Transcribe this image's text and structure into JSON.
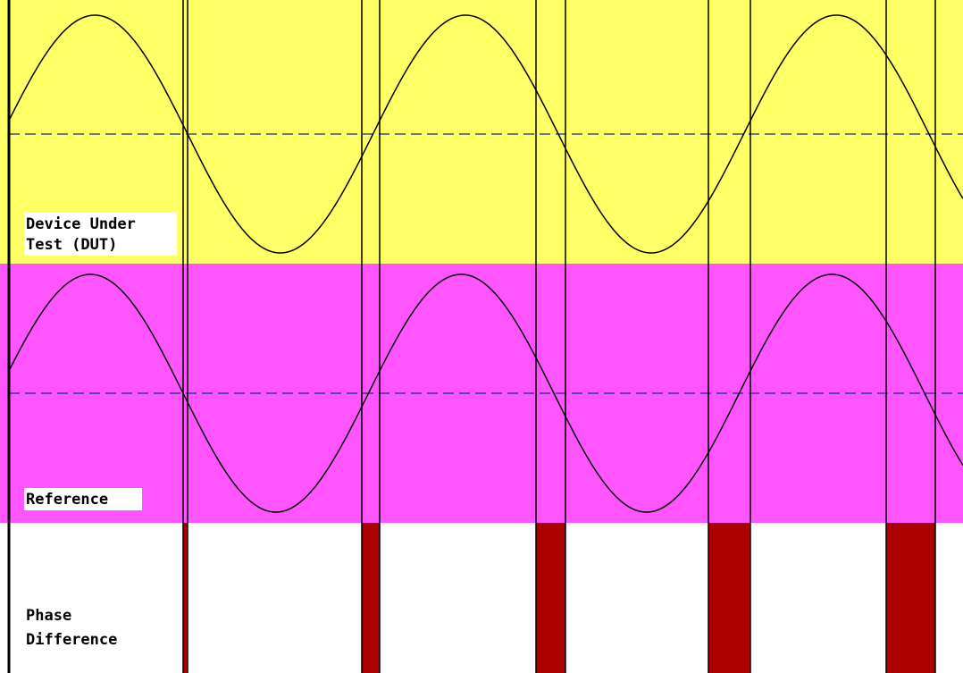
{
  "labels": {
    "dut": [
      "Device Under",
      "Test (DUT)"
    ],
    "reference": [
      "Reference"
    ],
    "phase": [
      "Phase",
      "Difference"
    ]
  },
  "colors": {
    "dut_band": "#ffff66",
    "reference_band": "#ff55ff",
    "phase_band": "#ffffff",
    "phase_pulse": "#aa0000",
    "wave": "#000000",
    "axis": "#000000",
    "midline": "#1a2a8a",
    "label_bg": "#ffffff"
  }
}
